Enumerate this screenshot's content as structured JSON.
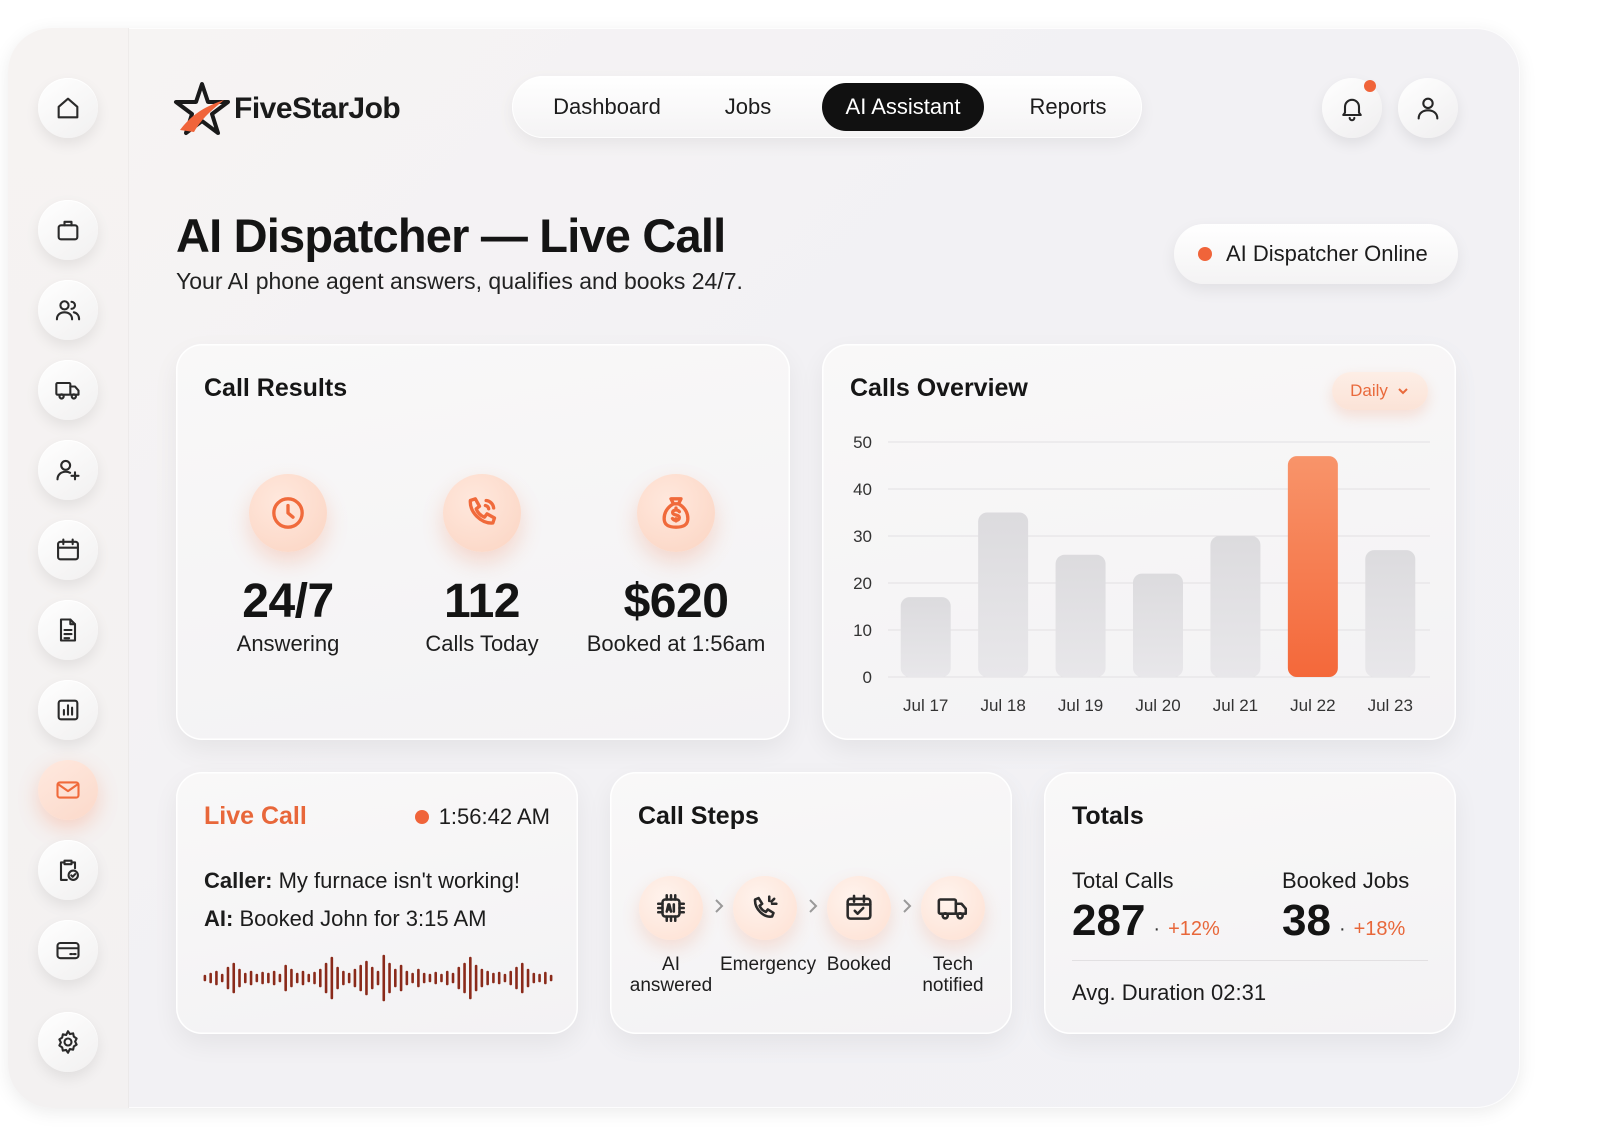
{
  "app": {
    "name": "FiveStarJob"
  },
  "sidebar": {
    "items": [
      {
        "icon": "home-icon",
        "label": "Home"
      },
      {
        "icon": "briefcase-icon",
        "label": "Jobs"
      },
      {
        "icon": "users-icon",
        "label": "Customers"
      },
      {
        "icon": "truck-icon",
        "label": "Dispatch"
      },
      {
        "icon": "user-plus-icon",
        "label": "Add user"
      },
      {
        "icon": "calendar-icon",
        "label": "Calendar"
      },
      {
        "icon": "document-icon",
        "label": "Documents"
      },
      {
        "icon": "bar-chart-icon",
        "label": "Reports"
      },
      {
        "icon": "mail-icon",
        "label": "Messages",
        "active": true
      },
      {
        "icon": "clipboard-check-icon",
        "label": "Tasks"
      },
      {
        "icon": "credit-card-icon",
        "label": "Payments"
      },
      {
        "icon": "gear-icon",
        "label": "Settings"
      }
    ]
  },
  "nav": {
    "tabs": [
      {
        "label": "Dashboard",
        "active": false
      },
      {
        "label": "Jobs",
        "active": false
      },
      {
        "label": "AI Assistant",
        "active": true
      },
      {
        "label": "Reports",
        "active": false
      }
    ]
  },
  "header": {
    "notification_icon": "bell-icon",
    "profile_icon": "user-icon",
    "title": "AI Dispatcher — Live Call",
    "subtitle": "Your AI phone agent answers, qualifies and books 24/7.",
    "status": "AI Dispatcher Online"
  },
  "call_results": {
    "title": "Call Results",
    "metrics": [
      {
        "icon": "clock-icon",
        "value": "24/7",
        "label": "Answering"
      },
      {
        "icon": "phone-icon",
        "value": "112",
        "label": "Calls Today"
      },
      {
        "icon": "money-bag-icon",
        "value": "$620",
        "label": "Booked at 1:56am"
      }
    ]
  },
  "calls_overview": {
    "title": "Calls Overview",
    "period": "Daily"
  },
  "chart_data": {
    "type": "bar",
    "title": "Calls Overview",
    "categories": [
      "Jul 17",
      "Jul 18",
      "Jul 19",
      "Jul 20",
      "Jul 21",
      "Jul 22",
      "Jul 23"
    ],
    "values": [
      17,
      35,
      26,
      22,
      30,
      47,
      27
    ],
    "highlight_index": 5,
    "ylim": [
      0,
      50
    ],
    "yticks": [
      0,
      10,
      20,
      30,
      40,
      50
    ],
    "grid": true,
    "colors": {
      "bar": "#dcdbde",
      "highlight": "#f4683a"
    }
  },
  "live_call": {
    "title": "Live Call",
    "time": "1:56:42 AM",
    "caller_label": "Caller:",
    "caller_text": "My furnace isn't working!",
    "ai_label": "AI:",
    "ai_text": "Booked John for 3:15 AM"
  },
  "call_steps": {
    "title": "Call Steps",
    "steps": [
      {
        "icon": "ai-chip-icon",
        "label": "AI answered"
      },
      {
        "icon": "phone-ring-icon",
        "label": "Emergency"
      },
      {
        "icon": "calendar-check-icon",
        "label": "Booked"
      },
      {
        "icon": "truck-icon",
        "label": "Tech notified"
      }
    ]
  },
  "totals": {
    "title": "Totals",
    "total_calls_label": "Total Calls",
    "total_calls_value": "287",
    "total_calls_change": "+12%",
    "booked_jobs_label": "Booked Jobs",
    "booked_jobs_value": "38",
    "booked_jobs_change": "+18%",
    "separator": "·",
    "avg_duration": "Avg. Duration 02:31"
  },
  "colors": {
    "accent": "#f0643a",
    "dark": "#111111"
  }
}
